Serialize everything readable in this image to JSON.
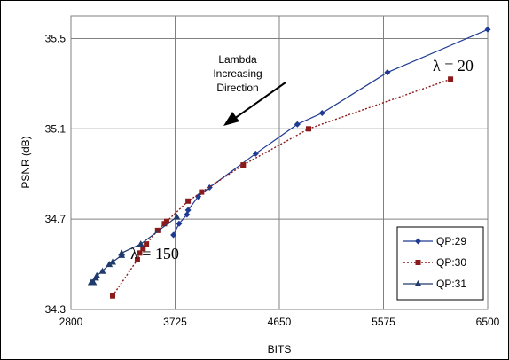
{
  "chart_data": {
    "type": "line",
    "xlabel": "BITS",
    "ylabel": "PSNR (dB)",
    "xlim": [
      2800,
      6500
    ],
    "ylim": [
      34.3,
      35.6
    ],
    "xticks": [
      "2800",
      "3725",
      "4650",
      "5575",
      "6500"
    ],
    "yticks": [
      "34.3",
      "34.7",
      "35.1",
      "35.5"
    ],
    "grid": true,
    "legend_position": "bottom-right",
    "series": [
      {
        "name": "QP:29",
        "color": "#1F3A93",
        "marker": "diamond",
        "line_style": "solid",
        "points": [
          [
            3710,
            34.63
          ],
          [
            3760,
            34.68
          ],
          [
            3830,
            34.72
          ],
          [
            3840,
            34.74
          ],
          [
            3930,
            34.8
          ],
          [
            4030,
            34.84
          ],
          [
            4440,
            34.99
          ],
          [
            4810,
            35.12
          ],
          [
            5030,
            35.17
          ],
          [
            5610,
            35.35
          ],
          [
            6500,
            35.54
          ]
        ]
      },
      {
        "name": "QP:30",
        "color": "#8B1A1A",
        "marker": "square",
        "line_style": "dotted",
        "points": [
          [
            3170,
            34.36
          ],
          [
            3390,
            34.52
          ],
          [
            3410,
            34.55
          ],
          [
            3440,
            34.57
          ],
          [
            3470,
            34.59
          ],
          [
            3570,
            34.65
          ],
          [
            3630,
            34.68
          ],
          [
            3650,
            34.69
          ],
          [
            3840,
            34.78
          ],
          [
            3960,
            34.82
          ],
          [
            4330,
            34.94
          ],
          [
            4910,
            35.1
          ],
          [
            6170,
            35.32
          ]
        ]
      },
      {
        "name": "QP:31",
        "color": "#1F3A6B",
        "marker": "triangle",
        "line_style": "solid",
        "points": [
          [
            2980,
            34.42
          ],
          [
            2990,
            34.42
          ],
          [
            3000,
            34.42
          ],
          [
            3020,
            34.44
          ],
          [
            3030,
            34.45
          ],
          [
            3080,
            34.47
          ],
          [
            3140,
            34.5
          ],
          [
            3170,
            34.51
          ],
          [
            3250,
            34.54
          ],
          [
            3250,
            34.55
          ],
          [
            3420,
            34.59
          ],
          [
            3740,
            34.71
          ]
        ]
      }
    ],
    "annotations": {
      "top_text_lines": [
        "Lambda",
        "Increasing",
        "Direction"
      ],
      "lambda_high": "λ = 20",
      "lambda_low": "λ = 150"
    }
  }
}
